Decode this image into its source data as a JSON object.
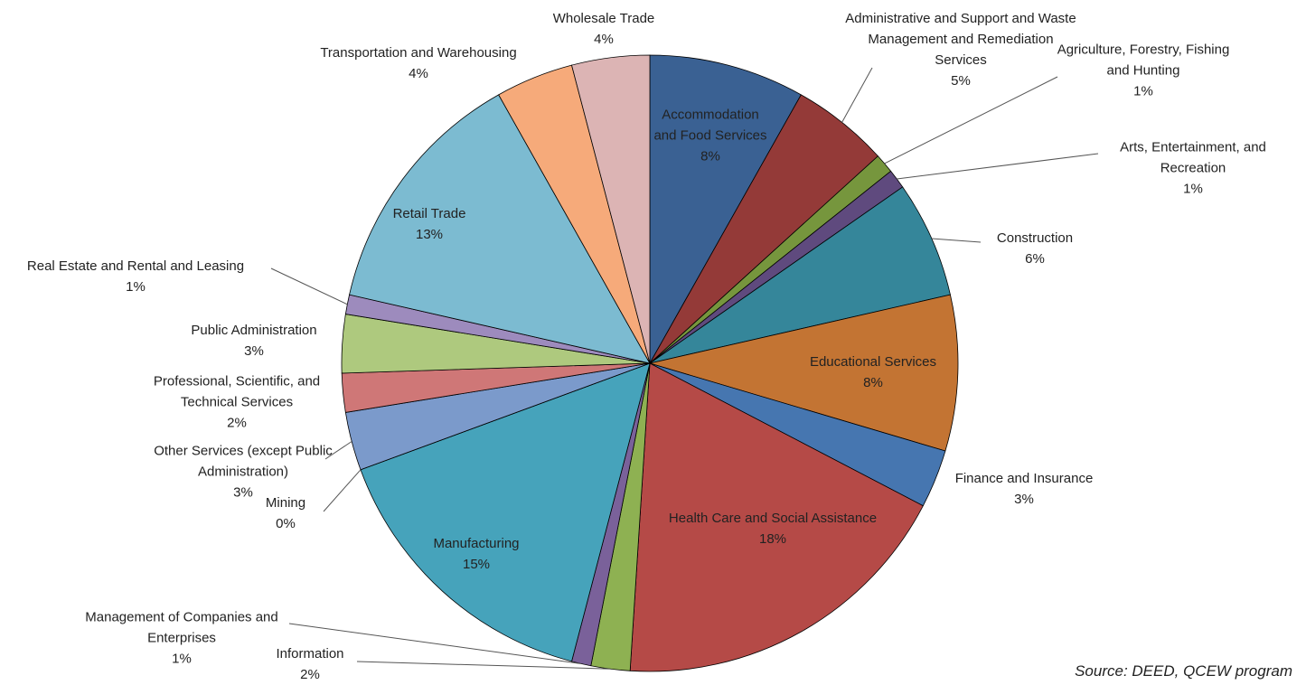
{
  "chart_data": {
    "type": "pie",
    "categories": [
      "Accommodation and Food Services",
      "Administrative and Support and Waste Management and Remediation Services",
      "Agriculture, Forestry, Fishing and Hunting",
      "Arts, Entertainment, and Recreation",
      "Construction",
      "Educational Services",
      "Finance and Insurance",
      "Health Care and Social Assistance",
      "Information",
      "Management of Companies and Enterprises",
      "Manufacturing",
      "Mining",
      "Other Services (except Public Administration)",
      "Professional, Scientific, and Technical Services",
      "Public Administration",
      "Real Estate and Rental and Leasing",
      "Retail Trade",
      "Transportation and Warehousing",
      "Wholesale Trade"
    ],
    "values": [
      8,
      5,
      1,
      1,
      6,
      8,
      3,
      18,
      2,
      1,
      15,
      0,
      3,
      2,
      3,
      1,
      13,
      4,
      4
    ],
    "value_labels": [
      "8%",
      "5%",
      "1%",
      "1%",
      "6%",
      "8%",
      "3%",
      "18%",
      "2%",
      "1%",
      "15%",
      "0%",
      "3%",
      "2%",
      "3%",
      "1%",
      "13%",
      "4%",
      "4%"
    ],
    "colors": [
      "#3a6193",
      "#943a38",
      "#76963d",
      "#5f4a7e",
      "#35869a",
      "#c37433",
      "#4676b0",
      "#b54a47",
      "#8eb152",
      "#7a619a",
      "#46a3bb",
      "#e07d32",
      "#7b9acb",
      "#cf7777",
      "#aec97e",
      "#9d8bbd",
      "#7cbbd1",
      "#f6aa7a",
      "#dcb4b4"
    ],
    "source": "Source: DEED, QCEW program"
  }
}
